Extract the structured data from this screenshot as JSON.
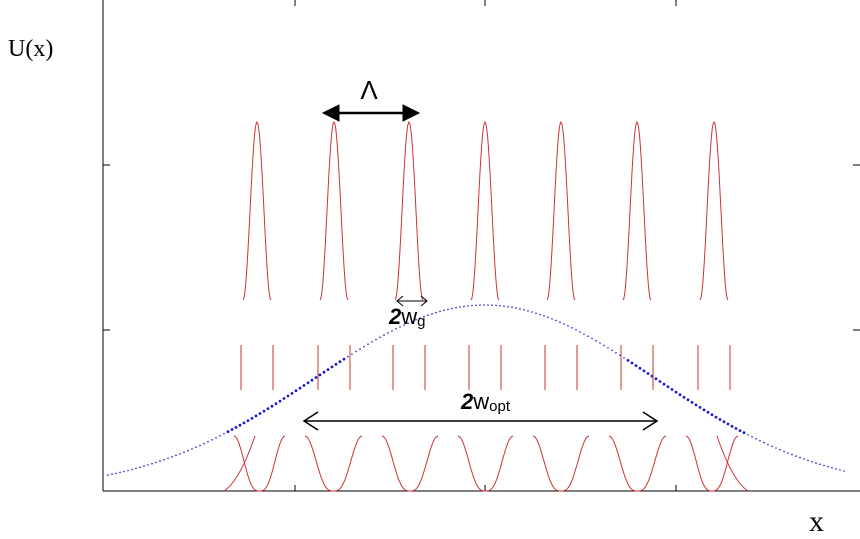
{
  "figure": {
    "y_axis_label": "U(x)",
    "x_axis_label": "x",
    "period_label": "Λ",
    "waveguide_width_label": {
      "prefix": "2",
      "main": "w",
      "sub": "g"
    },
    "optimal_width_label": {
      "prefix": "2",
      "main": "w",
      "sub": "opt"
    },
    "colors": {
      "waveguide_modes": "#cc3333",
      "gaussian_envelope": "#1a1acc",
      "annotation": "#000000",
      "axes": "#000000"
    }
  }
}
